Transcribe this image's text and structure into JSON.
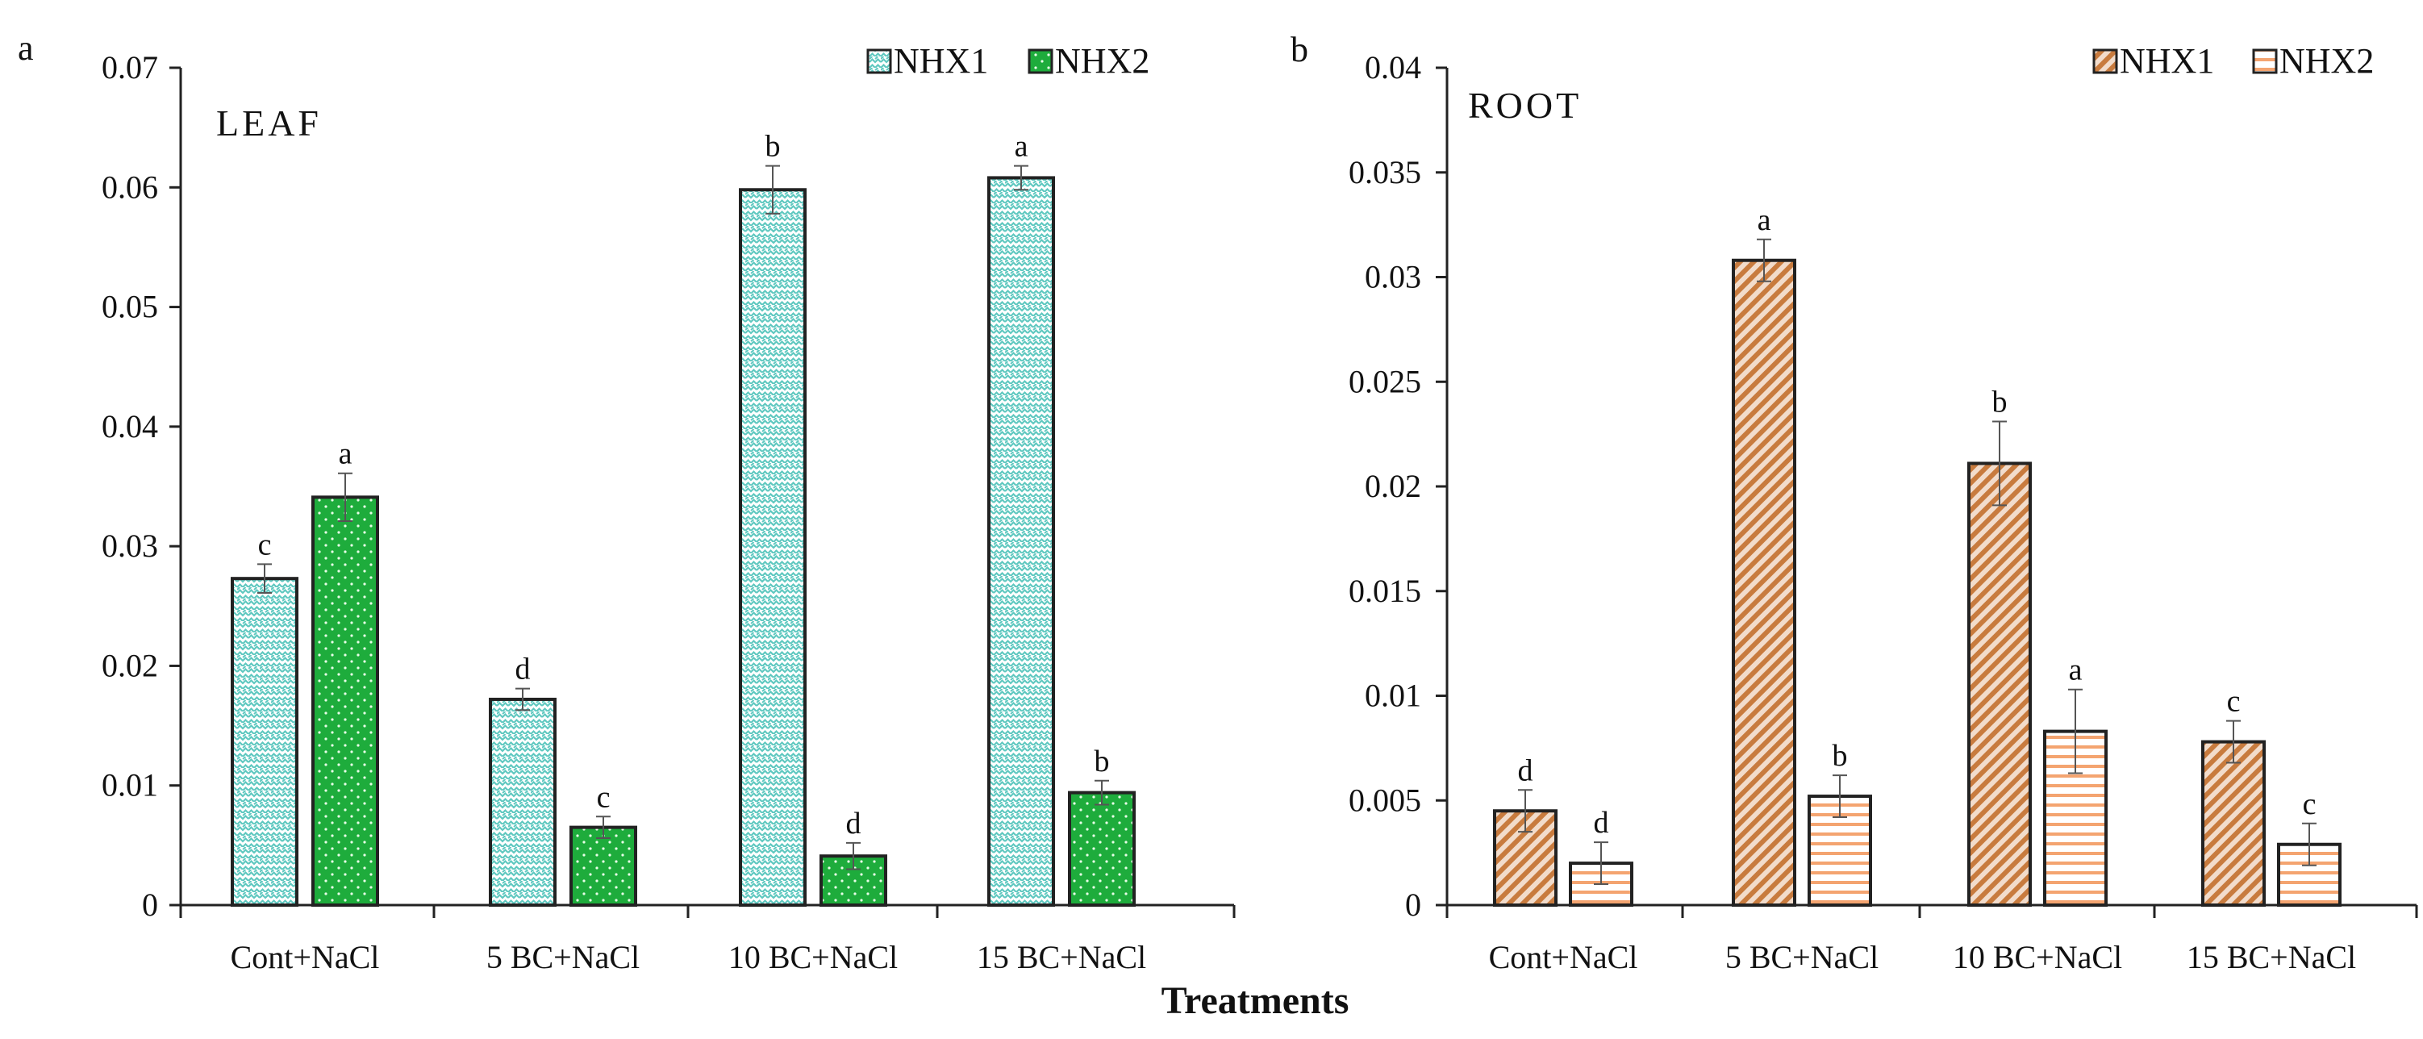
{
  "figure": {
    "xlabel": "Treatments",
    "colors": {
      "nhx1_leaf": "#5fc8c0",
      "nhx2_leaf": "#1eac3c",
      "nhx1_root": "#c87b3e",
      "nhx2_root": "#f4a470",
      "axis": "#222222"
    }
  },
  "chart_data": [
    {
      "type": "bar",
      "panel_label": "a",
      "title": "LEAF",
      "xlabel": "",
      "ylabel": "",
      "categories": [
        "Cont+NaCl",
        "5 BC+NaCl",
        "10 BC+NaCl",
        "15 BC+NaCl"
      ],
      "ylim": [
        0,
        0.07
      ],
      "yticks": [
        0,
        0.01,
        0.02,
        0.03,
        0.04,
        0.05,
        0.06,
        0.07
      ],
      "ytick_labels": [
        "0",
        "0.01",
        "0.02",
        "0.03",
        "0.04",
        "0.05",
        "0.06",
        "0.07"
      ],
      "legend_position": "top-right",
      "series": [
        {
          "name": "NHX1",
          "pattern": "chevron",
          "color": "#5fc8c0",
          "values": [
            0.0273,
            0.0172,
            0.0598,
            0.0608
          ],
          "errors": [
            0.0012,
            0.0009,
            0.002,
            0.001
          ],
          "letters": [
            "c",
            "d",
            "b",
            "a"
          ]
        },
        {
          "name": "NHX2",
          "pattern": "dots",
          "color": "#1eac3c",
          "values": [
            0.0341,
            0.0065,
            0.0041,
            0.0094
          ],
          "errors": [
            0.002,
            0.0009,
            0.0011,
            0.001
          ],
          "letters": [
            "a",
            "c",
            "d",
            "b"
          ]
        }
      ]
    },
    {
      "type": "bar",
      "panel_label": "b",
      "title": "ROOT",
      "xlabel": "",
      "ylabel": "",
      "categories": [
        "Cont+NaCl",
        "5 BC+NaCl",
        "10 BC+NaCl",
        "15 BC+NaCl"
      ],
      "ylim": [
        0,
        0.04
      ],
      "yticks": [
        0,
        0.005,
        0.01,
        0.015,
        0.02,
        0.025,
        0.03,
        0.035,
        0.04
      ],
      "ytick_labels": [
        "0",
        "0.005",
        "0.01",
        "0.015",
        "0.02",
        "0.025",
        "0.03",
        "0.035",
        "0.04"
      ],
      "legend_position": "top-right",
      "series": [
        {
          "name": "NHX1",
          "pattern": "diagonal",
          "color": "#c87b3e",
          "values": [
            0.0045,
            0.0308,
            0.0211,
            0.0078
          ],
          "errors": [
            0.001,
            0.001,
            0.002,
            0.001
          ],
          "letters": [
            "d",
            "a",
            "b",
            "c"
          ]
        },
        {
          "name": "NHX2",
          "pattern": "horizontal",
          "color": "#f4a470",
          "values": [
            0.002,
            0.0052,
            0.0083,
            0.0029
          ],
          "errors": [
            0.001,
            0.001,
            0.002,
            0.001
          ],
          "letters": [
            "d",
            "b",
            "a",
            "c"
          ]
        }
      ]
    }
  ]
}
